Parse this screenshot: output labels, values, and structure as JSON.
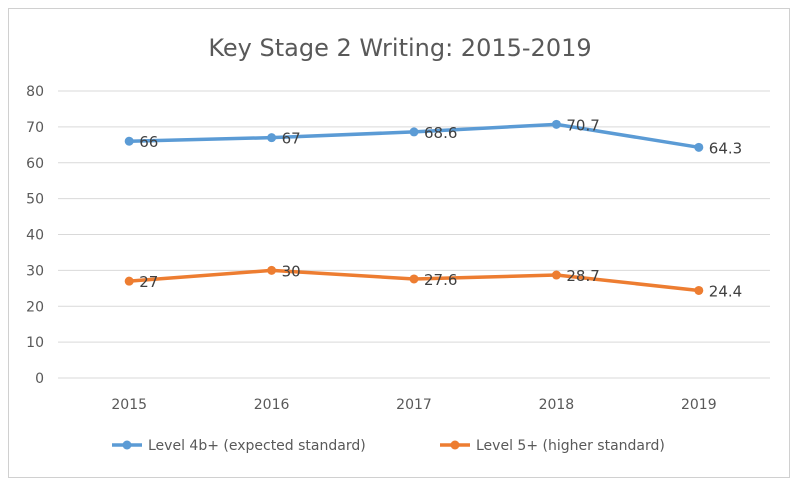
{
  "chart_data": {
    "type": "line",
    "title": "Key Stage 2 Writing: 2015-2019",
    "categories": [
      "2015",
      "2016",
      "2017",
      "2018",
      "2019"
    ],
    "ylim": [
      0,
      80
    ],
    "yticks": [
      0,
      10,
      20,
      30,
      40,
      50,
      60,
      70,
      80
    ],
    "grid": true,
    "legend_position": "bottom",
    "series": [
      {
        "name": "Level 4b+ (expected standard)",
        "values": [
          66,
          67,
          68.6,
          70.7,
          64.3
        ],
        "color": "#5b9bd5"
      },
      {
        "name": "Level 5+ (higher standard)",
        "values": [
          27,
          30,
          27.6,
          28.7,
          24.4
        ],
        "color": "#ed7d31"
      }
    ]
  }
}
